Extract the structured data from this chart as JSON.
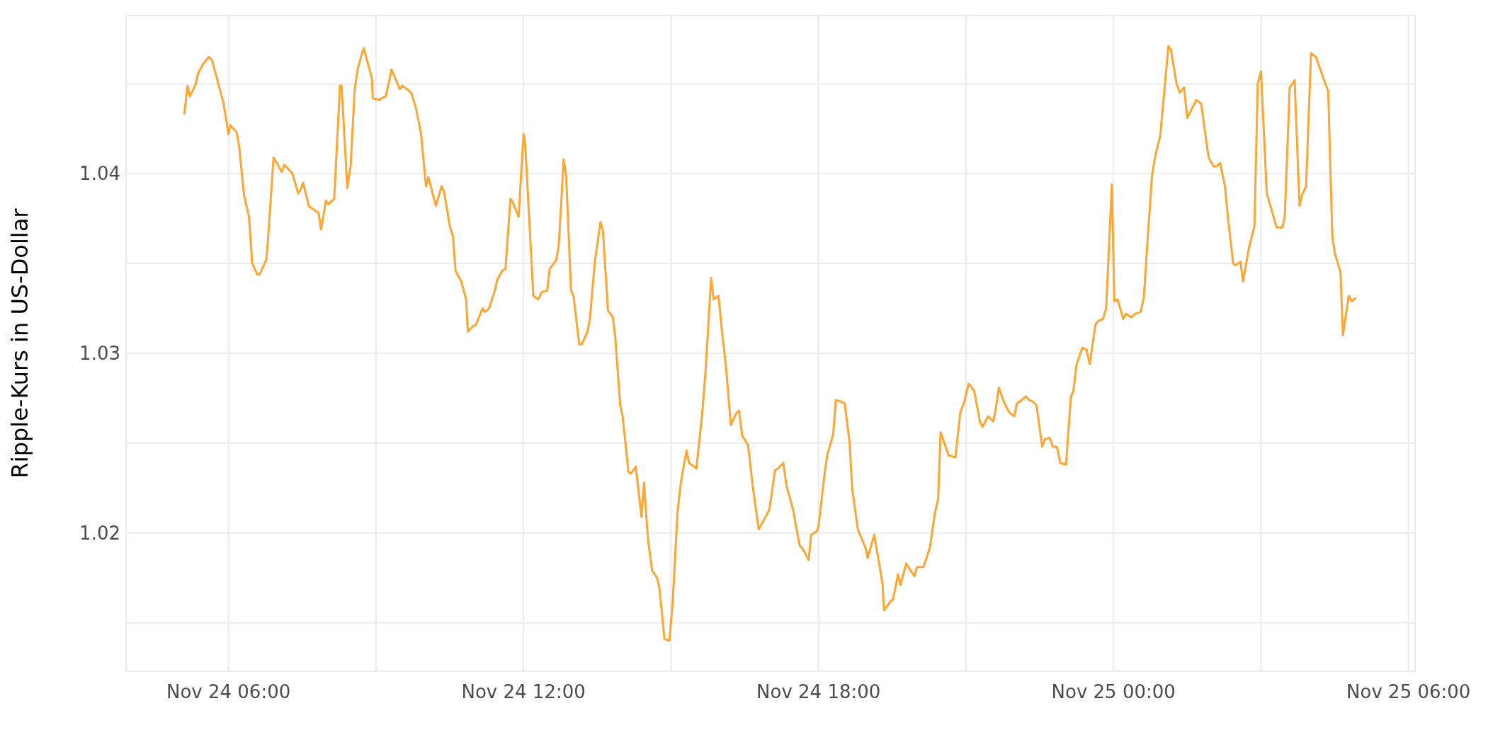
{
  "chart_data": {
    "type": "line",
    "ylabel": "Ripple-Kurs in US-Dollar",
    "color": "#ffa532",
    "x": [
      "--11-24T05:06",
      "--11-24T05:10",
      "--11-24T05:13",
      "--11-24T05:20",
      "--11-24T05:23",
      "--11-24T05:29",
      "--11-24T05:36",
      "--11-24T05:40",
      "--11-24T05:47",
      "--11-24T05:54",
      "--11-24T06:00",
      "--11-24T06:02",
      "--11-24T06:10",
      "--11-24T06:13",
      "--11-24T06:19",
      "--11-24T06:25",
      "--11-24T06:29",
      "--11-24T06:35",
      "--11-24T06:38",
      "--11-24T06:46",
      "--11-24T06:48",
      "--11-24T06:55",
      "--11-24T07:05",
      "--11-24T07:08",
      "--11-24T07:18",
      "--11-24T07:25",
      "--11-24T07:28",
      "--11-24T07:31",
      "--11-24T07:38",
      "--11-24T07:50",
      "--11-24T07:53",
      "--11-24T07:59",
      "--11-24T08:02",
      "--11-24T08:09",
      "--11-24T08:16",
      "--11-24T08:18",
      "--11-24T08:25",
      "--11-24T08:29",
      "--11-24T08:34",
      "--11-24T08:38",
      "--11-24T08:45",
      "--11-24T08:55",
      "--11-24T08:56",
      "--11-24T09:04",
      "--11-24T09:07",
      "--11-24T09:12",
      "--11-24T09:19",
      "--11-24T09:29",
      "--11-24T09:32",
      "--11-24T09:38",
      "--11-24T09:43",
      "--11-24T09:49",
      "--11-24T09:55",
      "--11-24T10:01",
      "--11-24T10:04",
      "--11-24T10:13",
      "--11-24T10:20",
      "--11-24T10:23",
      "--11-24T10:30",
      "--11-24T10:34",
      "--11-24T10:37",
      "--11-24T10:44",
      "--11-24T10:50",
      "--11-24T10:52",
      "--11-24T10:58",
      "--11-24T11:02",
      "--11-24T11:10",
      "--11-24T11:13",
      "--11-24T11:18",
      "--11-24T11:25",
      "--11-24T11:28",
      "--11-24T11:34",
      "--11-24T11:38",
      "--11-24T11:44",
      "--11-24T11:47",
      "--11-24T11:54",
      "--11-24T12:00",
      "--11-24T12:02",
      "--11-24T12:12",
      "--11-24T12:18",
      "--11-24T12:22",
      "--11-24T12:29",
      "--11-24T12:32",
      "--11-24T12:40",
      "--11-24T12:43",
      "--11-24T12:49",
      "--11-24T12:52",
      "--11-24T12:58",
      "--11-24T13:01",
      "--11-24T13:08",
      "--11-24T13:11",
      "--11-24T13:18",
      "--11-24T13:21",
      "--11-24T13:27",
      "--11-24T13:34",
      "--11-24T13:37",
      "--11-24T13:43",
      "--11-24T13:49",
      "--11-24T13:52",
      "--11-24T13:58",
      "--11-24T14:01",
      "--11-24T14:08",
      "--11-24T14:11",
      "--11-24T14:17",
      "--11-24T14:24",
      "--11-24T14:27",
      "--11-24T14:32",
      "--11-24T14:37",
      "--11-24T14:43",
      "--11-24T14:46",
      "--11-24T14:52",
      "--11-24T14:58",
      "--11-24T15:02",
      "--11-24T15:08",
      "--11-24T15:12",
      "--11-24T15:19",
      "--11-24T15:22",
      "--11-24T15:28",
      "--11-24T15:31",
      "--11-24T15:38",
      "--11-24T15:42",
      "--11-24T15:49",
      "--11-24T15:52",
      "--11-24T15:58",
      "--11-24T16:02",
      "--11-24T16:07",
      "--11-24T16:13",
      "--11-24T16:20",
      "--11-24T16:23",
      "--11-24T16:27",
      "--11-24T16:34",
      "--11-24T16:40",
      "--11-24T16:47",
      "--11-24T16:53",
      "--11-24T17:00",
      "--11-24T17:07",
      "--11-24T17:11",
      "--11-24T17:17",
      "--11-24T17:21",
      "--11-24T17:29",
      "--11-24T17:32",
      "--11-24T17:37",
      "--11-24T17:41",
      "--11-24T17:48",
      "--11-24T17:51",
      "--11-24T17:58",
      "--11-24T18:00",
      "--11-24T18:08",
      "--11-24T18:11",
      "--11-24T18:18",
      "--11-24T18:21",
      "--11-24T18:28",
      "--11-24T18:32",
      "--11-24T18:38",
      "--11-24T18:41",
      "--11-24T18:48",
      "--11-24T18:58",
      "--11-24T19:00",
      "--11-24T19:08",
      "--11-24T19:14",
      "--11-24T19:18",
      "--11-24T19:20",
      "--11-24T19:28",
      "--11-24T19:31",
      "--11-24T19:37",
      "--11-24T19:40",
      "--11-24T19:47",
      "--11-24T19:51",
      "--11-24T19:57",
      "--11-24T20:00",
      "--11-24T20:08",
      "--11-24T20:11",
      "--11-24T20:16",
      "--11-24T20:22",
      "--11-24T20:26",
      "--11-24T20:29",
      "--11-24T20:39",
      "--11-24T20:41",
      "--11-24T20:47",
      "--11-24T20:53",
      "--11-24T20:58",
      "--11-24T21:03",
      "--11-24T21:07",
      "--11-24T21:10",
      "--11-24T21:17",
      "--11-24T21:20",
      "--11-24T21:27",
      "--11-24T21:33",
      "--11-24T21:36",
      "--11-24T21:40",
      "--11-24T21:47",
      "--11-24T21:53",
      "--11-24T21:59",
      "--11-24T22:02",
      "--11-24T22:08",
      "--11-24T22:13",
      "--11-24T22:17",
      "--11-24T22:22",
      "--11-24T22:26",
      "--11-24T22:33",
      "--11-24T22:36",
      "--11-24T22:42",
      "--11-24T22:46",
      "--11-24T22:51",
      "--11-24T22:55",
      "--11-24T23:02",
      "--11-24T23:08",
      "--11-24T23:11",
      "--11-24T23:15",
      "--11-24T23:22",
      "--11-24T23:27",
      "--11-24T23:31",
      "--11-24T23:38",
      "--11-24T23:41",
      "--11-24T23:47",
      "--11-24T23:51",
      "--11-24T23:58",
      "--11-25T00:01",
      "--11-25T00:05",
      "--11-25T00:12",
      "--11-25T00:15",
      "--11-25T00:22",
      "--11-25T00:26",
      "--11-25T00:33",
      "--11-25T00:37",
      "--11-25T00:42",
      "--11-25T00:47",
      "--11-25T00:51",
      "--11-25T00:57",
      "--11-25T01:07",
      "--11-25T01:10",
      "--11-25T01:17",
      "--11-25T01:21",
      "--11-25T01:26",
      "--11-25T01:30",
      "--11-25T01:41",
      "--11-25T01:47",
      "--11-25T01:56",
      "--11-25T02:02",
      "--11-25T02:06",
      "--11-25T02:10",
      "--11-25T02:16",
      "--11-25T02:20",
      "--11-25T02:26",
      "--11-25T02:29",
      "--11-25T02:35",
      "--11-25T02:38",
      "--11-25T02:45",
      "--11-25T02:52",
      "--11-25T02:56",
      "--11-25T03:00",
      "--11-25T03:07",
      "--11-25T03:16",
      "--11-25T03:19",
      "--11-25T03:26",
      "--11-25T03:29",
      "--11-25T03:35",
      "--11-25T03:41",
      "--11-25T03:47",
      "--11-25T03:50",
      "--11-25T03:55",
      "--11-25T04:01",
      "--11-25T04:07",
      "--11-25T04:17",
      "--11-25T04:22",
      "--11-25T04:27",
      "--11-25T04:30",
      "--11-25T04:37",
      "--11-25T04:40",
      "--11-25T04:47",
      "--11-25T04:51",
      "--11-25T04:56"
    ],
    "values": [
      1.0433,
      1.0449,
      1.0443,
      1.045,
      1.0456,
      1.0461,
      1.0465,
      1.0463,
      1.0451,
      1.0439,
      1.0422,
      1.0427,
      1.0423,
      1.0415,
      1.0388,
      1.0376,
      1.035,
      1.0344,
      1.0344,
      1.0352,
      1.0362,
      1.0409,
      1.0401,
      1.0405,
      1.04,
      1.0389,
      1.0391,
      1.0395,
      1.0382,
      1.0378,
      1.0369,
      1.0385,
      1.0383,
      1.0386,
      1.0449,
      1.0449,
      1.0392,
      1.0404,
      1.0447,
      1.0459,
      1.047,
      1.0453,
      1.0442,
      1.0441,
      1.0442,
      1.0443,
      1.0458,
      1.0447,
      1.0449,
      1.0447,
      1.0445,
      1.0436,
      1.0422,
      1.0393,
      1.0398,
      1.0382,
      1.0393,
      1.039,
      1.0371,
      1.0365,
      1.0346,
      1.034,
      1.033,
      1.0312,
      1.0315,
      1.0316,
      1.0325,
      1.0323,
      1.0325,
      1.0335,
      1.0341,
      1.0346,
      1.0347,
      1.0386,
      1.0384,
      1.0376,
      1.0422,
      1.0417,
      1.0332,
      1.033,
      1.0334,
      1.0335,
      1.0347,
      1.0352,
      1.036,
      1.0408,
      1.0399,
      1.0335,
      1.0332,
      1.0305,
      1.0305,
      1.0312,
      1.0319,
      1.0351,
      1.0373,
      1.0368,
      1.0324,
      1.032,
      1.0309,
      1.0271,
      1.0265,
      1.0234,
      1.0233,
      1.0237,
      1.0209,
      1.0228,
      1.0196,
      1.0179,
      1.0175,
      1.0169,
      1.0141,
      1.014,
      1.0161,
      1.0212,
      1.0228,
      1.0246,
      1.0239,
      1.0237,
      1.0236,
      1.0266,
      1.0289,
      1.0342,
      1.033,
      1.0332,
      1.0313,
      1.0293,
      1.026,
      1.0267,
      1.0268,
      1.0254,
      1.0249,
      1.0225,
      1.0202,
      1.0207,
      1.0213,
      1.0235,
      1.0236,
      1.0239,
      1.0226,
      1.0213,
      1.0205,
      1.0193,
      1.0191,
      1.0185,
      1.0199,
      1.0201,
      1.0204,
      1.0235,
      1.0244,
      1.0255,
      1.0274,
      1.0273,
      1.0272,
      1.025,
      1.0225,
      1.0202,
      1.0191,
      1.0186,
      1.0199,
      1.0183,
      1.0172,
      1.0157,
      1.0162,
      1.0163,
      1.0177,
      1.0171,
      1.0183,
      1.018,
      1.0176,
      1.0181,
      1.0181,
      1.0185,
      1.0192,
      1.0211,
      1.0219,
      1.0256,
      1.0243,
      1.0243,
      1.0242,
      1.0267,
      1.0273,
      1.0283,
      1.0281,
      1.0279,
      1.0262,
      1.0259,
      1.0265,
      1.0262,
      1.0268,
      1.0281,
      1.0272,
      1.0267,
      1.0265,
      1.0272,
      1.0274,
      1.0276,
      1.0274,
      1.0273,
      1.0271,
      1.0248,
      1.0252,
      1.0253,
      1.0248,
      1.0248,
      1.0239,
      1.0238,
      1.0276,
      1.0279,
      1.0294,
      1.0303,
      1.0302,
      1.0294,
      1.0316,
      1.0318,
      1.0319,
      1.0325,
      1.0394,
      1.0329,
      1.033,
      1.0319,
      1.0322,
      1.032,
      1.0322,
      1.0323,
      1.0331,
      1.0366,
      1.0399,
      1.041,
      1.0421,
      1.0471,
      1.0469,
      1.045,
      1.0445,
      1.0448,
      1.0431,
      1.0441,
      1.0439,
      1.0409,
      1.0404,
      1.0404,
      1.0406,
      1.0393,
      1.0374,
      1.035,
      1.0349,
      1.0351,
      1.034,
      1.0358,
      1.0371,
      1.045,
      1.0457,
      1.0389,
      1.0375,
      1.037,
      1.037,
      1.0376,
      1.0448,
      1.0452,
      1.0382,
      1.0388,
      1.0393,
      1.0467,
      1.0465,
      1.0452,
      1.0446,
      1.0365,
      1.0356,
      1.0345,
      1.031,
      1.0332,
      1.0329,
      1.0331
    ],
    "xlim": [
      "--11-24T03:55",
      "--11-25T06:08"
    ],
    "xticks": [
      {
        "value": "--11-24T06:00",
        "label": "Nov 24 06:00"
      },
      {
        "value": "--11-24T09:00",
        "label": null
      },
      {
        "value": "--11-24T12:00",
        "label": "Nov 24 12:00"
      },
      {
        "value": "--11-24T15:00",
        "label": null
      },
      {
        "value": "--11-24T18:00",
        "label": "Nov 24 18:00"
      },
      {
        "value": "--11-24T21:00",
        "label": null
      },
      {
        "value": "--11-25T00:00",
        "label": "Nov 25 00:00"
      },
      {
        "value": "--11-25T03:00",
        "label": null
      },
      {
        "value": "--11-25T06:00",
        "label": "Nov 25 06:00"
      }
    ],
    "ylim": [
      1.0123,
      1.0488
    ],
    "yticks": [
      {
        "value": 1.015,
        "label": null
      },
      {
        "value": 1.02,
        "label": "1.02"
      },
      {
        "value": 1.025,
        "label": null
      },
      {
        "value": 1.03,
        "label": "1.03"
      },
      {
        "value": 1.035,
        "label": null
      },
      {
        "value": 1.04,
        "label": "1.04"
      },
      {
        "value": 1.045,
        "label": null
      }
    ],
    "grid": true
  }
}
